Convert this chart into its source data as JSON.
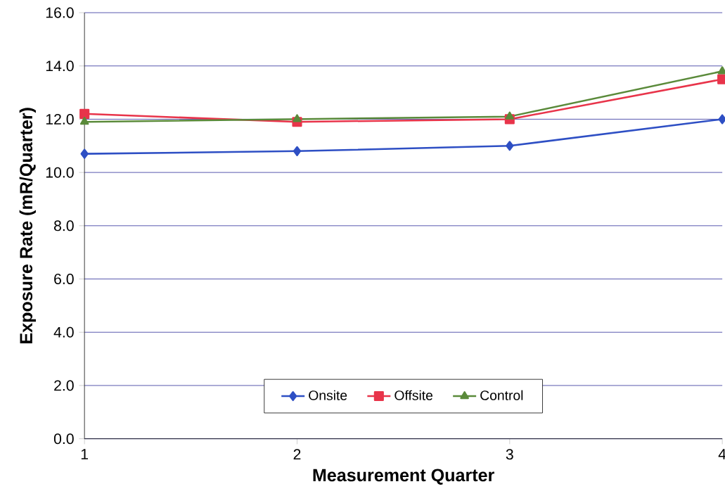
{
  "chart_data": {
    "type": "line",
    "xlabel": "Measurement Quarter",
    "ylabel": "Exposure Rate (mR/Quarter)",
    "x": [
      1,
      2,
      3,
      4
    ],
    "series": [
      {
        "name": "Onsite",
        "color": "#2e4fc4",
        "marker": "diamond",
        "values": [
          10.7,
          10.8,
          11.0,
          12.0
        ]
      },
      {
        "name": "Offsite",
        "color": "#e8344a",
        "marker": "square",
        "values": [
          12.2,
          11.9,
          12.0,
          13.5
        ]
      },
      {
        "name": "Control",
        "color": "#5a8a3a",
        "marker": "triangle",
        "values": [
          11.9,
          12.0,
          12.1,
          13.8
        ]
      }
    ],
    "xlim": [
      1,
      4
    ],
    "xticks": [
      1,
      2,
      3,
      4
    ],
    "ylim": [
      0,
      16
    ],
    "yticks": [
      {
        "value": 0,
        "label": "0.0"
      },
      {
        "value": 2,
        "label": "2.0"
      },
      {
        "value": 4,
        "label": "4.0"
      },
      {
        "value": 6,
        "label": "6.0"
      },
      {
        "value": 8,
        "label": "8.0"
      },
      {
        "value": 10,
        "label": "10.0"
      },
      {
        "value": 12,
        "label": "12.0"
      },
      {
        "value": 14,
        "label": "14.0"
      },
      {
        "value": 16,
        "label": "16.0"
      }
    ],
    "grid": "y",
    "legend": "bottom",
    "line_style": "solid"
  }
}
